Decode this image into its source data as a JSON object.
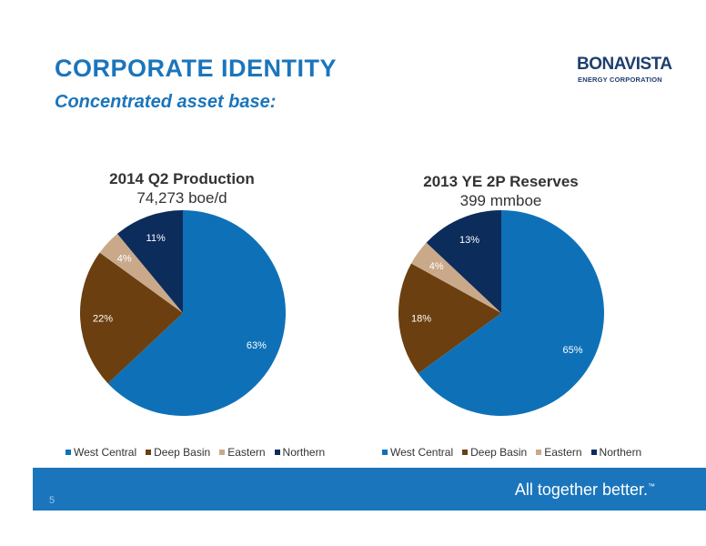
{
  "header": {
    "title": "CORPORATE IDENTITY",
    "subtitle": "Concentrated asset base:"
  },
  "logo": {
    "name": "BONAVISTA",
    "tagline": "ENERGY CORPORATION"
  },
  "colors": {
    "west_central": "#0e71b8",
    "deep_basin": "#6b3f0f",
    "eastern": "#c9a98a",
    "northern": "#0c2c5c",
    "accent": "#1a75bc"
  },
  "chart_data": [
    {
      "type": "pie",
      "title": "2014 Q2 Production",
      "subtitle": "74,273 boe/d",
      "categories": [
        "West Central",
        "Deep Basin",
        "Eastern",
        "Northern"
      ],
      "values": [
        63,
        22,
        4,
        11
      ],
      "labels": [
        "63%",
        "22%",
        "4%",
        "11%"
      ],
      "legend_position": "bottom"
    },
    {
      "type": "pie",
      "title": "2013 YE 2P Reserves",
      "subtitle": "399 mmboe",
      "categories": [
        "West Central",
        "Deep Basin",
        "Eastern",
        "Northern"
      ],
      "values": [
        65,
        18,
        4,
        13
      ],
      "labels": [
        "65%",
        "18%",
        "4%",
        "13%"
      ],
      "legend_position": "bottom"
    }
  ],
  "footer": {
    "page_number": "5",
    "tagline": "All together better.",
    "trademark": "™"
  }
}
